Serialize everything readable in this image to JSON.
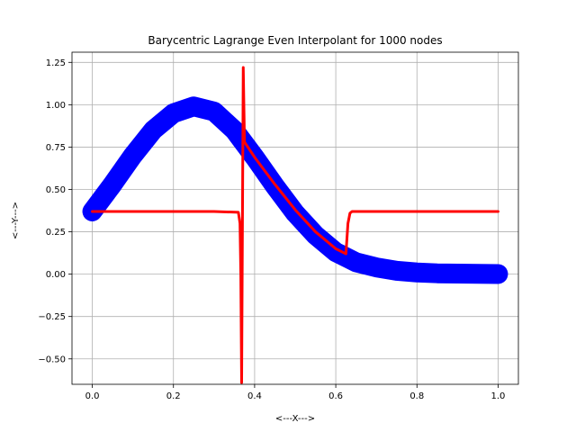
{
  "chart_data": {
    "type": "line",
    "title": "Barycentric Lagrange Even Interpolant for 1000 nodes",
    "xlabel": "<---X--->",
    "ylabel": "<---Y--->",
    "xlim": [
      -0.05,
      1.05
    ],
    "ylim": [
      -0.65,
      1.31
    ],
    "grid": true,
    "x_ticks": [
      0.0,
      0.2,
      0.4,
      0.6,
      0.8,
      1.0
    ],
    "x_tick_labels": [
      "0.0",
      "0.2",
      "0.4",
      "0.6",
      "0.8",
      "1.0"
    ],
    "y_ticks": [
      -0.5,
      -0.25,
      0.0,
      0.25,
      0.5,
      0.75,
      1.0,
      1.25
    ],
    "y_tick_labels": [
      "−0.50",
      "−0.25",
      "0.00",
      "0.25",
      "0.50",
      "0.75",
      "1.00",
      "1.25"
    ],
    "series": [
      {
        "color": "#0000ff",
        "style": "thick-band",
        "x": [
          0.0,
          0.05,
          0.1,
          0.15,
          0.2,
          0.25,
          0.3,
          0.35,
          0.4,
          0.45,
          0.5,
          0.55,
          0.6,
          0.65,
          0.7,
          0.75,
          0.8,
          0.85,
          0.9,
          0.95,
          1.0
        ],
        "y": [
          0.37,
          0.53,
          0.7,
          0.85,
          0.95,
          0.99,
          0.96,
          0.85,
          0.69,
          0.52,
          0.36,
          0.23,
          0.13,
          0.07,
          0.04,
          0.02,
          0.01,
          0.005,
          0.003,
          0.002,
          0.001
        ]
      },
      {
        "color": "#ff0000",
        "style": "line",
        "x": [
          0.0,
          0.1,
          0.2,
          0.3,
          0.36,
          0.364,
          0.366,
          0.368,
          0.37,
          0.372,
          0.375,
          0.4,
          0.45,
          0.5,
          0.55,
          0.6,
          0.625,
          0.63,
          0.635,
          0.64,
          0.7,
          0.8,
          0.9,
          1.0
        ],
        "y": [
          0.37,
          0.37,
          0.37,
          0.37,
          0.365,
          0.3,
          0.0,
          -0.64,
          0.3,
          1.22,
          0.78,
          0.69,
          0.53,
          0.38,
          0.25,
          0.15,
          0.12,
          0.3,
          0.36,
          0.37,
          0.37,
          0.37,
          0.37,
          0.37
        ]
      }
    ]
  }
}
